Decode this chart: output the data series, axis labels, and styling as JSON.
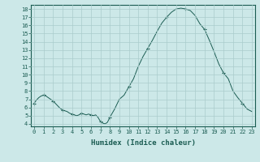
{
  "x": [
    0,
    0.25,
    0.5,
    0.75,
    1,
    1.25,
    1.5,
    1.75,
    2,
    2.25,
    2.5,
    2.75,
    3,
    3.25,
    3.5,
    3.75,
    4,
    4.25,
    4.5,
    4.75,
    5,
    5.25,
    5.5,
    5.75,
    6,
    6.25,
    6.5,
    6.75,
    7,
    7.25,
    7.5,
    7.75,
    8,
    8.5,
    9,
    9.5,
    10,
    10.5,
    11,
    11.5,
    12,
    12.5,
    13,
    13.5,
    14,
    14.5,
    15,
    15.5,
    16,
    16.5,
    17,
    17.5,
    18,
    18.5,
    19,
    19.5,
    20,
    20.5,
    21,
    21.5,
    22,
    22.5,
    23
  ],
  "y": [
    6.5,
    6.9,
    7.2,
    7.4,
    7.5,
    7.4,
    7.2,
    7.0,
    6.8,
    6.5,
    6.2,
    5.9,
    5.7,
    5.6,
    5.5,
    5.3,
    5.2,
    5.1,
    5.0,
    5.1,
    5.3,
    5.2,
    5.1,
    5.2,
    5.1,
    5.0,
    5.1,
    4.8,
    4.3,
    4.1,
    4.0,
    4.2,
    4.8,
    5.8,
    7.0,
    7.5,
    8.5,
    9.5,
    11.0,
    12.2,
    13.2,
    14.2,
    15.3,
    16.3,
    17.0,
    17.6,
    18.0,
    18.1,
    18.0,
    17.8,
    17.2,
    16.2,
    15.5,
    14.2,
    12.8,
    11.3,
    10.2,
    9.5,
    8.0,
    7.2,
    6.5,
    5.8,
    5.5
  ],
  "xlim": [
    -0.3,
    23.3
  ],
  "ylim": [
    3.7,
    18.5
  ],
  "yticks": [
    4,
    5,
    6,
    7,
    8,
    9,
    10,
    11,
    12,
    13,
    14,
    15,
    16,
    17,
    18
  ],
  "xticks": [
    0,
    1,
    2,
    3,
    4,
    5,
    6,
    7,
    8,
    9,
    10,
    11,
    12,
    13,
    14,
    15,
    16,
    17,
    18,
    19,
    20,
    21,
    22,
    23
  ],
  "xlabel": "Humidex (Indice chaleur)",
  "line_color": "#1a5c52",
  "marker": "+",
  "bg_color": "#cce8e8",
  "grid_color": "#aacccc"
}
